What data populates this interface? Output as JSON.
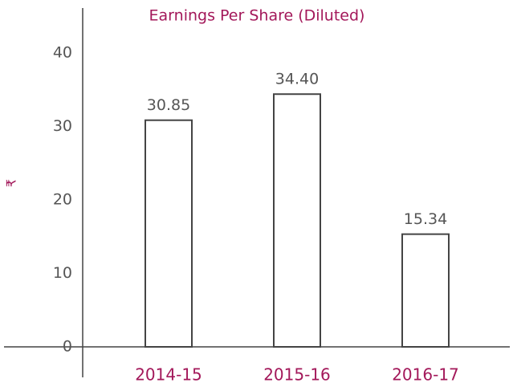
{
  "chart_data": {
    "type": "bar",
    "title": "Earnings Per Share (Diluted)",
    "y_label": "₹",
    "categories": [
      "2014-15",
      "2015-16",
      "2016-17"
    ],
    "values": [
      30.85,
      34.4,
      15.34
    ],
    "value_labels": [
      "30.85",
      "34.40",
      "15.34"
    ],
    "color": "#ffffff",
    "ylim": [
      0,
      40
    ],
    "yticks": [
      0,
      10,
      20,
      30,
      40
    ],
    "grid": false
  }
}
